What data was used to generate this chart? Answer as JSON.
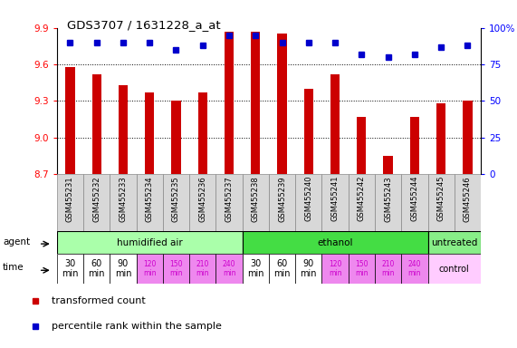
{
  "title": "GDS3707 / 1631228_a_at",
  "samples": [
    "GSM455231",
    "GSM455232",
    "GSM455233",
    "GSM455234",
    "GSM455235",
    "GSM455236",
    "GSM455237",
    "GSM455238",
    "GSM455239",
    "GSM455240",
    "GSM455241",
    "GSM455242",
    "GSM455243",
    "GSM455244",
    "GSM455245",
    "GSM455246"
  ],
  "bar_values": [
    9.58,
    9.52,
    9.43,
    9.37,
    9.3,
    9.37,
    9.87,
    9.87,
    9.85,
    9.4,
    9.52,
    9.17,
    8.85,
    9.17,
    9.28,
    9.3
  ],
  "dot_values": [
    90,
    90,
    90,
    90,
    85,
    88,
    95,
    95,
    90,
    90,
    90,
    82,
    80,
    82,
    87,
    88
  ],
  "ylim_left": [
    8.7,
    9.9
  ],
  "ylim_right": [
    0,
    100
  ],
  "yticks_left": [
    8.7,
    9.0,
    9.3,
    9.6,
    9.9
  ],
  "yticks_right": [
    0,
    25,
    50,
    75,
    100
  ],
  "bar_color": "#cc0000",
  "dot_color": "#0000cc",
  "agent_row": [
    {
      "label": "humidified air",
      "start": 0,
      "end": 7,
      "color": "#aaffaa"
    },
    {
      "label": "ethanol",
      "start": 7,
      "end": 14,
      "color": "#44dd44"
    },
    {
      "label": "untreated",
      "start": 14,
      "end": 16,
      "color": "#88ee88"
    }
  ],
  "time_labels_set1": [
    "30\nmin",
    "60\nmin",
    "90\nmin",
    "120\nmin",
    "150\nmin",
    "210\nmin",
    "240\nmin"
  ],
  "time_labels_set2": [
    "30\nmin",
    "60\nmin",
    "90\nmin",
    "120\nmin",
    "150\nmin",
    "210\nmin",
    "240\nmin"
  ],
  "time_white_count": 3,
  "time_pink_count": 4,
  "time_white_color": "#ffffff",
  "time_pink_color": "#ee88ee",
  "time_control_color": "#ffccff",
  "legend_items": [
    {
      "label": "transformed count",
      "color": "#cc0000"
    },
    {
      "label": "percentile rank within the sample",
      "color": "#0000cc"
    }
  ]
}
